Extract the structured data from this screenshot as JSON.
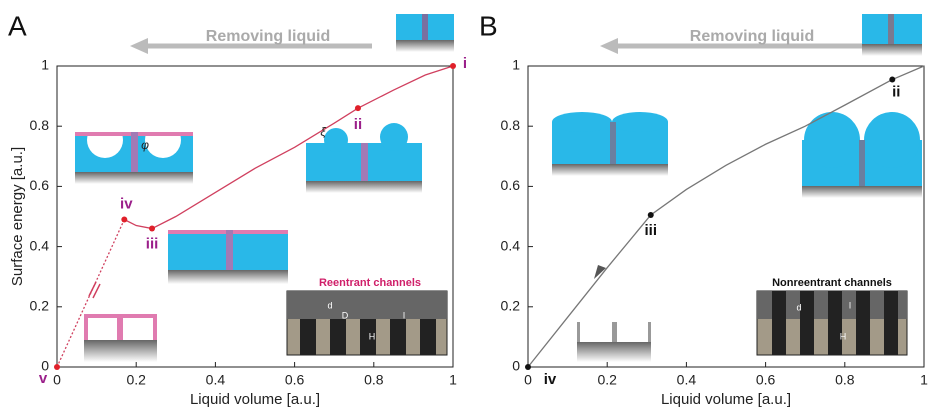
{
  "chart_data": [
    {
      "type": "line",
      "panel_label": "A",
      "banner": "Removing liquid",
      "x_label": "Liquid volume [a.u.]",
      "y_label": "Surface energy [a.u.]",
      "xlim": [
        0,
        1
      ],
      "ylim": [
        0,
        1
      ],
      "xticks": [
        0,
        0.2,
        0.4,
        0.6,
        0.8,
        1
      ],
      "yticks": [
        0,
        0.2,
        0.4,
        0.6,
        0.8,
        1
      ],
      "series": [
        {
          "style": "dotted",
          "color": "#d0405f",
          "x": [
            0,
            0.17
          ],
          "values": [
            0,
            0.49
          ]
        },
        {
          "style": "solid",
          "color": "#d0405f",
          "x": [
            0.17,
            0.2,
            0.24,
            0.3,
            0.4,
            0.5,
            0.6,
            0.7,
            0.76,
            0.85,
            0.93,
            1
          ],
          "values": [
            0.49,
            0.47,
            0.46,
            0.5,
            0.58,
            0.66,
            0.73,
            0.81,
            0.86,
            0.92,
            0.97,
            1
          ]
        }
      ],
      "point_color": "#e0202a",
      "label_color": "#9b1f8a",
      "points": [
        {
          "label": "i",
          "x": 1,
          "y": 1
        },
        {
          "label": "ii",
          "x": 0.76,
          "y": 0.86
        },
        {
          "label": "iii",
          "x": 0.24,
          "y": 0.46
        },
        {
          "label": "iv",
          "x": 0.17,
          "y": 0.49
        },
        {
          "label": "v",
          "x": 0,
          "y": 0
        }
      ],
      "inset_title": "Reentrant channels",
      "inset_labels": [
        "d",
        "D",
        "H",
        "l"
      ],
      "angle_labels": [
        "φ",
        "ξ"
      ]
    },
    {
      "type": "line",
      "panel_label": "B",
      "banner": "Removing liquid",
      "x_label": "Liquid volume [a.u.]",
      "xlim": [
        0,
        1
      ],
      "ylim": [
        0,
        1
      ],
      "xticks": [
        0,
        0.2,
        0.4,
        0.6,
        0.8,
        1
      ],
      "yticks": [
        0,
        0.2,
        0.4,
        0.6,
        0.8,
        1
      ],
      "series": [
        {
          "style": "solid",
          "color": "#777777",
          "x": [
            0,
            0.1,
            0.2,
            0.31,
            0.4,
            0.5,
            0.6,
            0.7,
            0.8,
            0.92,
            1
          ],
          "values": [
            0,
            0.165,
            0.33,
            0.505,
            0.59,
            0.67,
            0.74,
            0.8,
            0.87,
            0.955,
            1
          ]
        }
      ],
      "point_color": "#111111",
      "label_color": "#111111",
      "points": [
        {
          "label": "ii",
          "x": 0.92,
          "y": 0.955
        },
        {
          "label": "iii",
          "x": 0.31,
          "y": 0.505
        },
        {
          "label": "iv",
          "x": 0,
          "y": 0
        }
      ],
      "inset_title": "Nonreentrant channels",
      "inset_labels": [
        "d",
        "H",
        "l"
      ]
    }
  ]
}
